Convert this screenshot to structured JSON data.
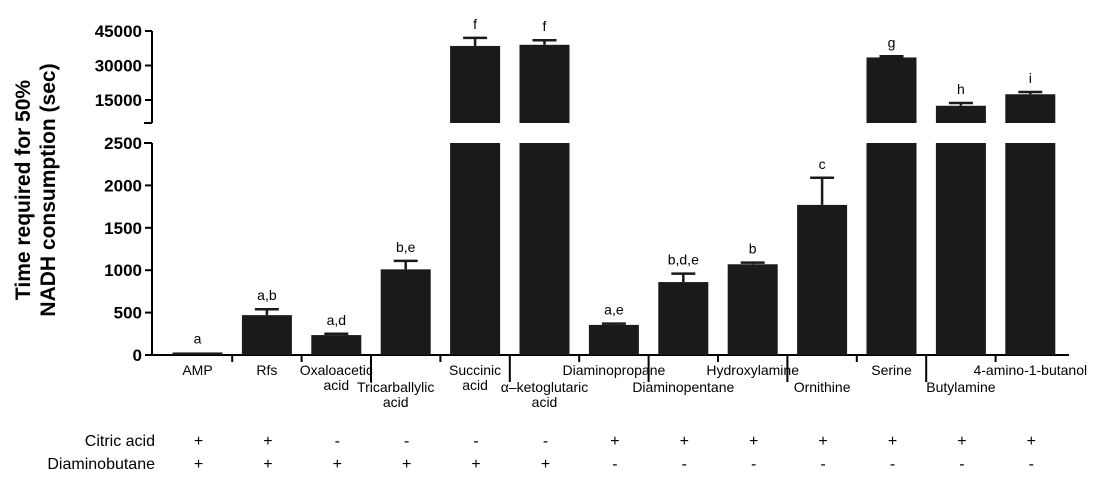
{
  "chart_data": {
    "type": "bar",
    "ylabel_lines": [
      "Time required for 50%",
      "NADH consumption (sec)"
    ],
    "categories": [
      [
        "AMP"
      ],
      [
        "Rfs"
      ],
      [
        "Oxaloacetic",
        "acid"
      ],
      [
        "Tricarballylic",
        "acid"
      ],
      [
        "Succinic",
        "acid"
      ],
      [
        "α–ketoglutaric",
        "acid"
      ],
      [
        "Diaminopropane"
      ],
      [
        "Diaminopentane"
      ],
      [
        "Hydroxylamine"
      ],
      [
        "Ornithine"
      ],
      [
        "Serine"
      ],
      [
        "Butylamine"
      ],
      [
        "4-amino-1-butanol"
      ]
    ],
    "values": [
      30,
      470,
      235,
      1010,
      38500,
      39000,
      355,
      860,
      1070,
      1770,
      33500,
      12500,
      17500
    ],
    "errors": [
      0,
      70,
      15,
      100,
      3500,
      2000,
      15,
      100,
      20,
      320,
      500,
      1200,
      1000
    ],
    "significance": [
      "a",
      "a,b",
      "a,d",
      "b,e",
      "f",
      "f",
      "a,e",
      "b,d,e",
      "b",
      "c",
      "g",
      "h",
      "i"
    ],
    "lower_axis": {
      "range": [
        0,
        2500
      ],
      "ticks": [
        0,
        500,
        1000,
        1500,
        2000,
        2500
      ]
    },
    "upper_axis": {
      "range": [
        5000,
        45000
      ],
      "ticks": [
        15000,
        30000,
        45000
      ]
    },
    "axis_break": true,
    "conditions": [
      {
        "label": "Citric acid",
        "signs": [
          "+",
          "+",
          "-",
          "-",
          "-",
          "-",
          "+",
          "+",
          "+",
          "+",
          "+",
          "+",
          "+"
        ]
      },
      {
        "label": "Diaminobutane",
        "signs": [
          "+",
          "+",
          "+",
          "+",
          "+",
          "+",
          "-",
          "-",
          "-",
          "-",
          "-",
          "-",
          "-"
        ]
      }
    ],
    "colors": {
      "bar": "#1a1a1a",
      "axis": "#000000"
    }
  }
}
